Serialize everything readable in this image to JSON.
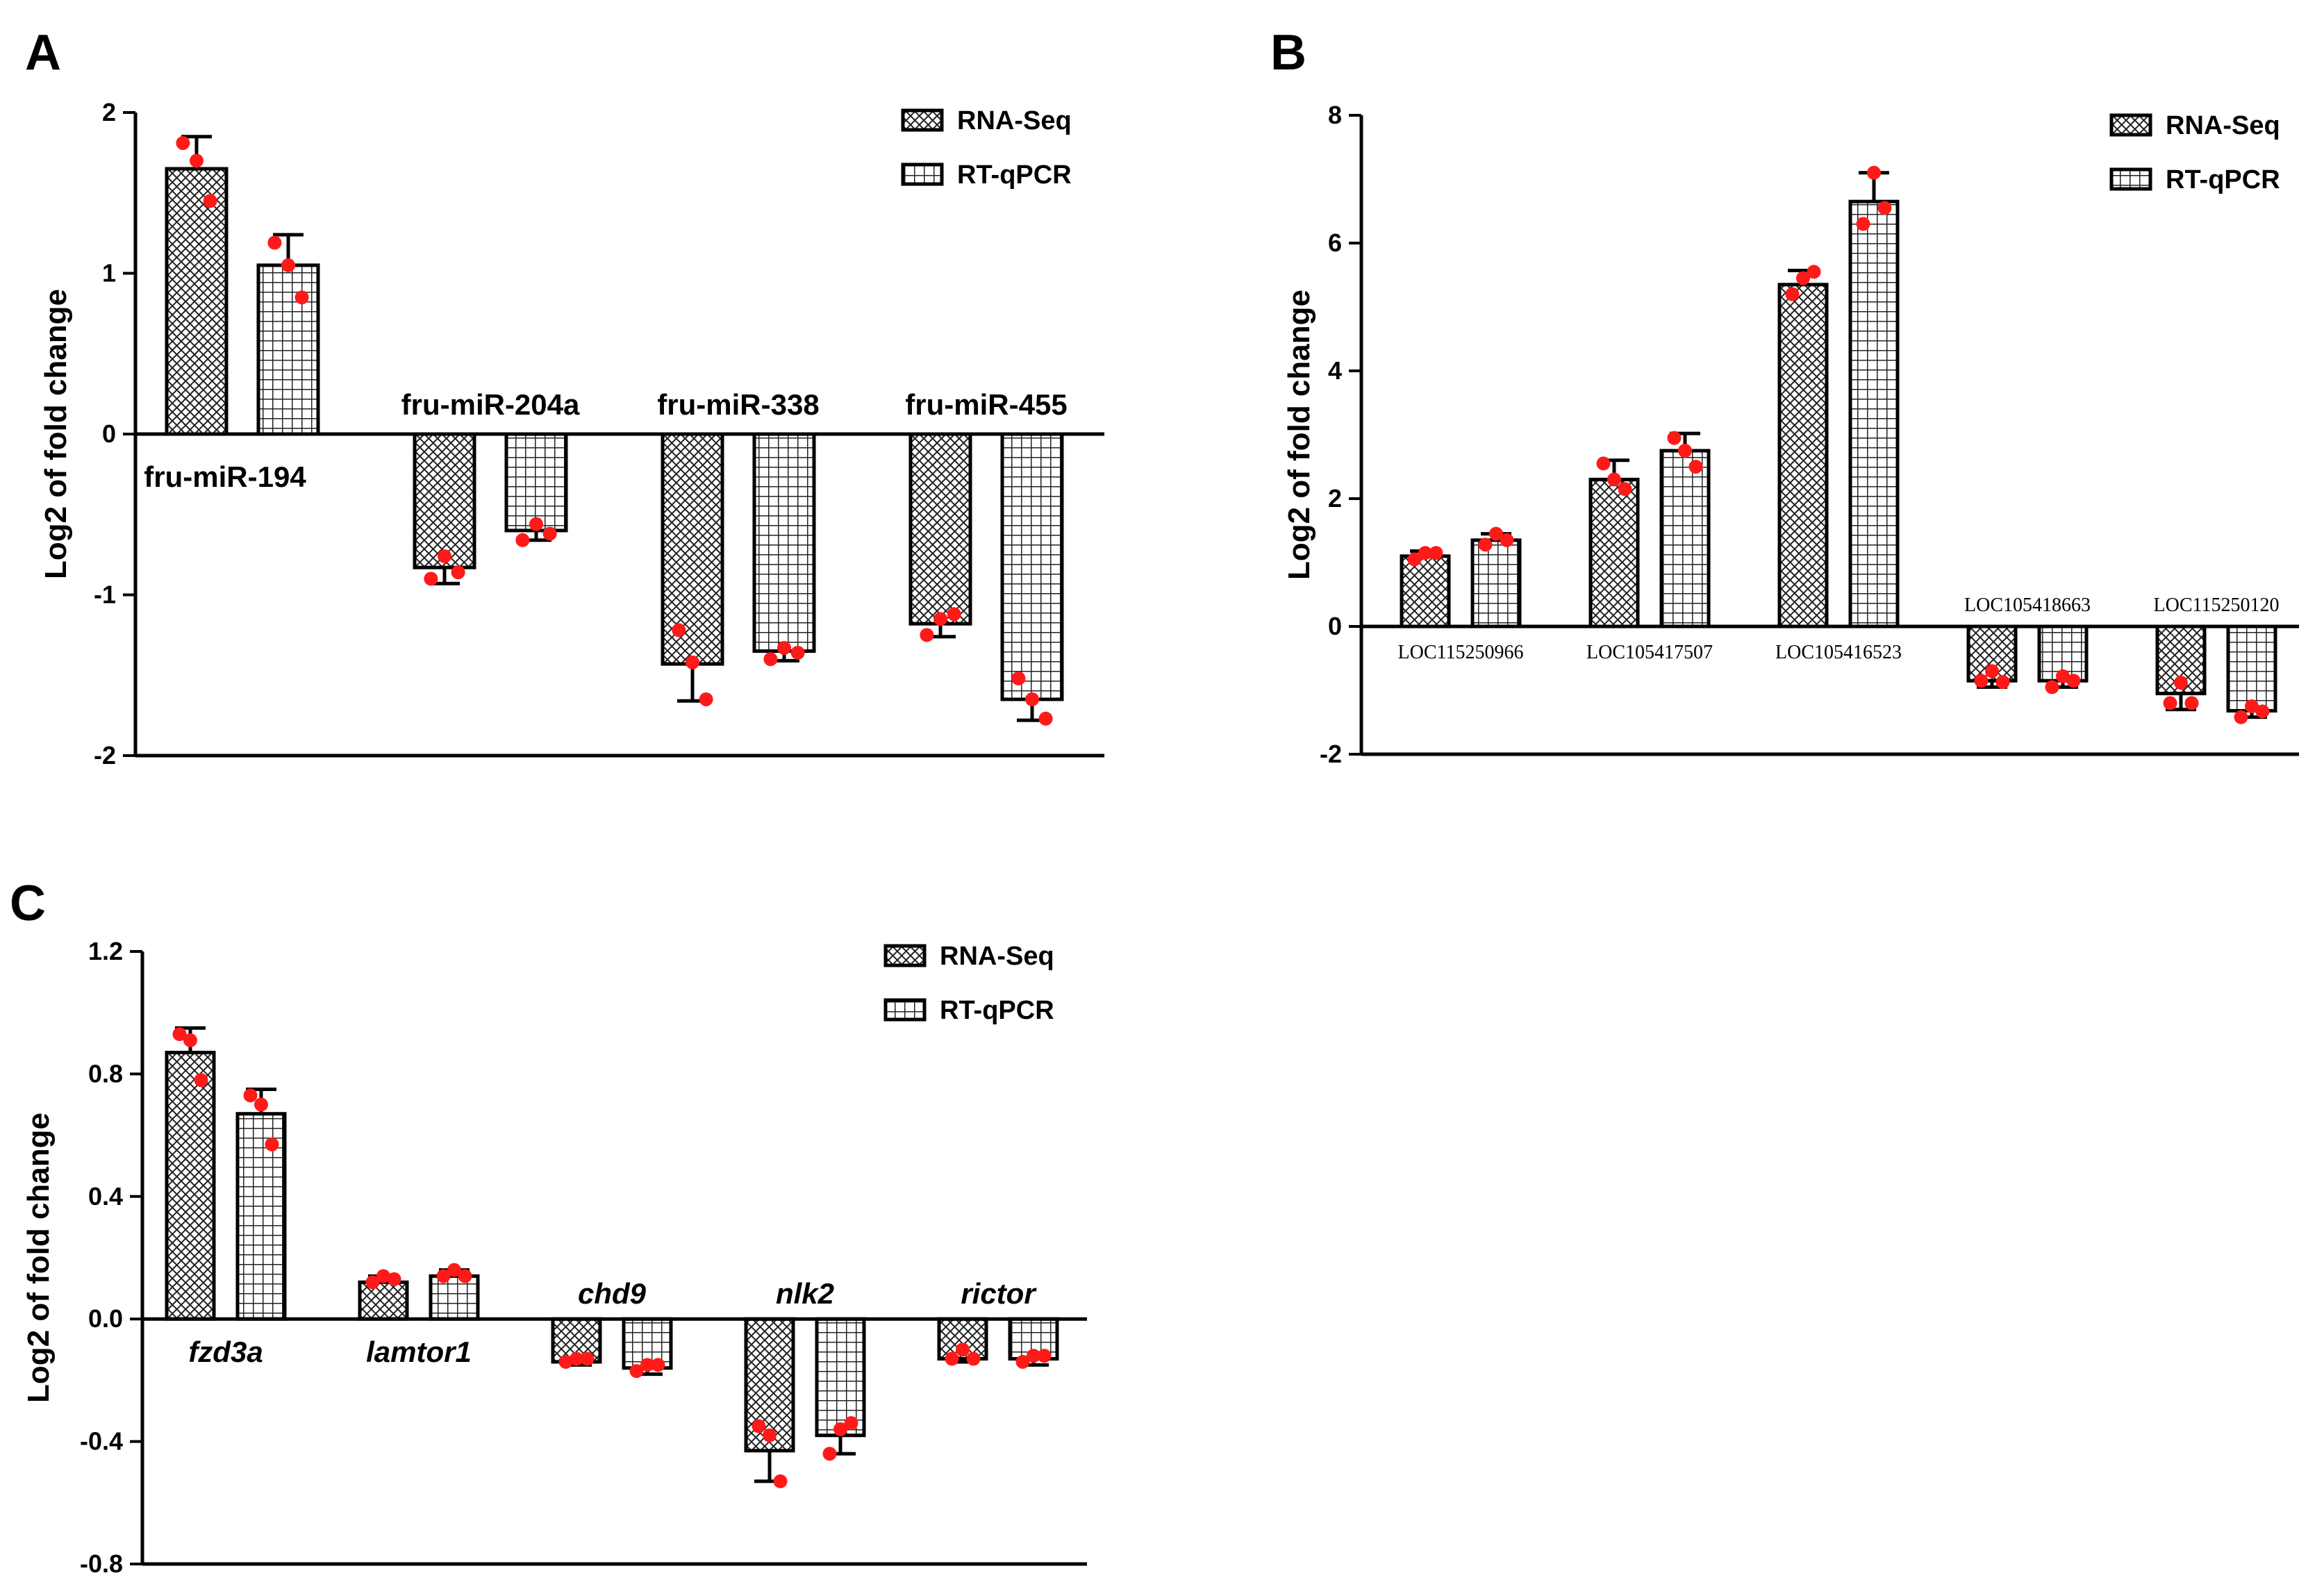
{
  "colors": {
    "point": "#ff1a1a",
    "axis": "#000000",
    "bar_fill": "#ffffff"
  },
  "chart_data": [
    {
      "panel": "A",
      "type": "bar",
      "ylabel": "Log2 of fold change",
      "ylim": [
        -2,
        2
      ],
      "yticks": [
        "2",
        "1",
        "0",
        "-1",
        "-2"
      ],
      "ytick_values": [
        2,
        1,
        0,
        -1,
        -2
      ],
      "label_style": "bold",
      "legend": [
        "RNA-Seq",
        "RT-qPCR"
      ],
      "legend_position": "top-right",
      "categories": [
        "fru-miR-194",
        "fru-miR-204a",
        "fru-miR-338",
        "fru-miR-455"
      ],
      "label_side": [
        "below",
        "above",
        "above",
        "above"
      ],
      "series": [
        {
          "name": "RNA-Seq",
          "pattern": "dense",
          "values": [
            1.65,
            -0.83,
            -1.43,
            -1.18
          ],
          "errors": [
            0.2,
            0.1,
            0.23,
            0.08
          ],
          "points": [
            [
              1.81,
              1.7,
              1.45
            ],
            [
              -0.9,
              -0.76,
              -0.86
            ],
            [
              -1.22,
              -1.42,
              -1.65
            ],
            [
              -1.25,
              -1.15,
              -1.12
            ]
          ]
        },
        {
          "name": "RT-qPCR",
          "pattern": "grid",
          "values": [
            1.05,
            -0.6,
            -1.35,
            -1.65
          ],
          "errors": [
            0.19,
            0.06,
            0.06,
            0.13
          ],
          "points": [
            [
              1.19,
              1.05,
              0.85
            ],
            [
              -0.66,
              -0.56,
              -0.62
            ],
            [
              -1.4,
              -1.33,
              -1.36
            ],
            [
              -1.52,
              -1.65,
              -1.77
            ]
          ]
        }
      ]
    },
    {
      "panel": "B",
      "type": "bar",
      "ylabel": "Log2 of fold change",
      "ylim": [
        -2,
        8
      ],
      "yticks": [
        "8",
        "6",
        "4",
        "2",
        "0",
        "-2"
      ],
      "ytick_values": [
        8,
        6,
        4,
        2,
        0,
        -2
      ],
      "label_style": "small",
      "legend": [
        "RNA-Seq",
        "RT-qPCR"
      ],
      "legend_position": "top-right",
      "categories": [
        "LOC115250966",
        "LOC105417507",
        "LOC105416523",
        "LOC105418663",
        "LOC115250120"
      ],
      "label_side": [
        "below",
        "below",
        "below",
        "above",
        "above"
      ],
      "series": [
        {
          "name": "RNA-Seq",
          "pattern": "dense",
          "values": [
            1.1,
            2.3,
            5.35,
            -0.85,
            -1.05
          ],
          "errors": [
            0.08,
            0.3,
            0.22,
            0.1,
            0.25
          ],
          "points": [
            [
              1.05,
              1.15,
              1.15
            ],
            [
              2.55,
              2.3,
              2.15
            ],
            [
              5.2,
              5.45,
              5.55
            ],
            [
              -0.85,
              -0.7,
              -0.87
            ],
            [
              -1.2,
              -0.88,
              -1.2
            ]
          ]
        },
        {
          "name": "RT-qPCR",
          "pattern": "grid",
          "values": [
            1.35,
            2.75,
            6.65,
            -0.85,
            -1.32
          ],
          "errors": [
            0.1,
            0.27,
            0.45,
            0.1,
            0.1
          ],
          "points": [
            [
              1.28,
              1.45,
              1.35
            ],
            [
              2.95,
              2.75,
              2.5
            ],
            [
              6.3,
              7.1,
              6.55
            ],
            [
              -0.95,
              -0.78,
              -0.85
            ],
            [
              -1.42,
              -1.25,
              -1.33
            ]
          ]
        }
      ]
    },
    {
      "panel": "C",
      "type": "bar",
      "ylabel": "Log2 of fold change",
      "ylim": [
        -0.8,
        1.2
      ],
      "yticks": [
        "1.2",
        "0.8",
        "0.4",
        "0.0",
        "-0.4",
        "-0.8"
      ],
      "ytick_values": [
        1.2,
        0.8,
        0.4,
        0.0,
        -0.4,
        -0.8
      ],
      "label_style": "italic",
      "legend": [
        "RNA-Seq",
        "RT-qPCR"
      ],
      "legend_position": "top-right",
      "categories": [
        "fzd3a",
        "lamtor1",
        "chd9",
        "nlk2",
        "rictor"
      ],
      "label_side": [
        "below",
        "below",
        "above",
        "above",
        "above"
      ],
      "series": [
        {
          "name": "RNA-Seq",
          "pattern": "dense",
          "values": [
            0.87,
            0.12,
            -0.14,
            -0.43,
            -0.13
          ],
          "errors": [
            0.08,
            0.02,
            0.01,
            0.1,
            0.01
          ],
          "points": [
            [
              0.93,
              0.91,
              0.78
            ],
            [
              0.12,
              0.14,
              0.13
            ],
            [
              -0.14,
              -0.13,
              -0.13
            ],
            [
              -0.35,
              -0.38,
              -0.53
            ],
            [
              -0.13,
              -0.1,
              -0.13
            ]
          ]
        },
        {
          "name": "RT-qPCR",
          "pattern": "grid",
          "values": [
            0.67,
            0.14,
            -0.16,
            -0.38,
            -0.13
          ],
          "errors": [
            0.08,
            0.02,
            0.02,
            0.06,
            0.02
          ],
          "points": [
            [
              0.73,
              0.7,
              0.57
            ],
            [
              0.14,
              0.16,
              0.14
            ],
            [
              -0.17,
              -0.15,
              -0.15
            ],
            [
              -0.44,
              -0.36,
              -0.34
            ],
            [
              -0.14,
              -0.12,
              -0.12
            ]
          ]
        }
      ]
    }
  ]
}
